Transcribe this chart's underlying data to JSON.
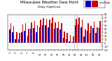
{
  "title": "Milwaukee Weather Dew Point",
  "subtitle": "Daily High/Low",
  "background_color": "#ffffff",
  "plot_bg_color": "#ffffff",
  "color_high": "#cc0000",
  "color_low": "#0000cc",
  "ylim": [
    -20,
    80
  ],
  "yticks": [
    -20,
    -10,
    0,
    10,
    20,
    30,
    40,
    50,
    60,
    70,
    80
  ],
  "num_bars": 31,
  "highs": [
    55,
    48,
    30,
    28,
    52,
    55,
    40,
    58,
    62,
    50,
    65,
    70,
    68,
    65,
    72,
    58,
    60,
    55,
    32,
    28,
    22,
    18,
    68,
    72,
    65,
    38,
    55,
    48,
    60,
    45,
    62
  ],
  "lows": [
    38,
    30,
    10,
    10,
    30,
    35,
    20,
    40,
    42,
    30,
    45,
    50,
    50,
    45,
    55,
    40,
    42,
    38,
    15,
    10,
    5,
    3,
    50,
    52,
    45,
    18,
    35,
    28,
    42,
    28,
    42
  ],
  "xtick_labels": [
    "1",
    "",
    "3",
    "",
    "5",
    "",
    "7",
    "",
    "9",
    "",
    "11",
    "",
    "13",
    "",
    "15",
    "",
    "17",
    "",
    "19",
    "",
    "21",
    "",
    "23",
    "",
    "25",
    "",
    "27",
    "",
    "29",
    "",
    "31"
  ],
  "dashed_lines": [
    21.5,
    22.5
  ],
  "title_fontsize": 4.0,
  "subtitle_fontsize": 3.2,
  "tick_fontsize": 2.5,
  "legend_label_low": "Low",
  "legend_label_high": "High"
}
